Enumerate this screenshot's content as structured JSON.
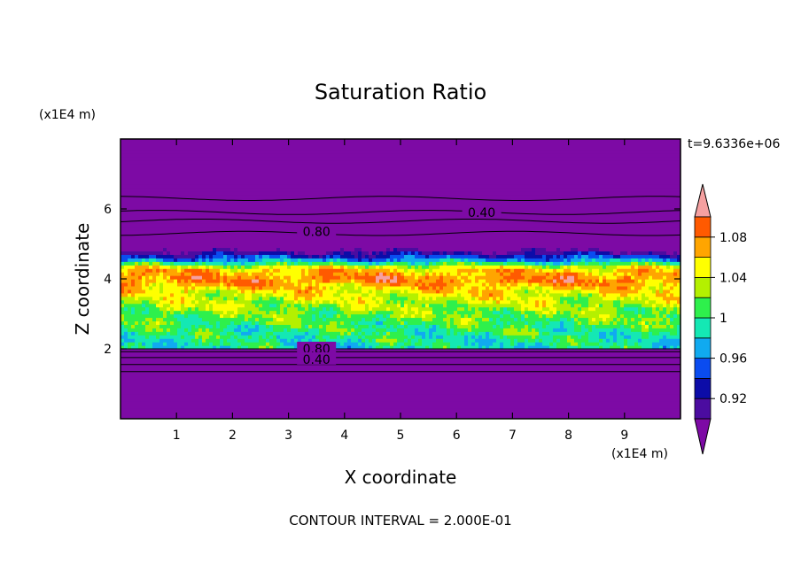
{
  "chart_data": {
    "type": "heatmap",
    "title": "Saturation Ratio",
    "xlabel": "X coordinate",
    "ylabel": "Z coordinate",
    "x_unit": "(x1E4 m)",
    "y_unit": "(x1E4 m)",
    "time_label": "t=9.6336e+06",
    "footer": "CONTOUR INTERVAL = 2.000E-01",
    "xlim": [
      0,
      10
    ],
    "ylim": [
      0,
      8
    ],
    "x_ticks": [
      "1",
      "2",
      "3",
      "4",
      "5",
      "6",
      "7",
      "8",
      "9"
    ],
    "y_ticks": [
      "2",
      "4",
      "6"
    ],
    "colorbar": {
      "levels": [
        0.9,
        0.92,
        0.94,
        0.96,
        0.98,
        1.0,
        1.02,
        1.04,
        1.06,
        1.08,
        1.1
      ],
      "labels": [
        "0.92",
        "0.96",
        "1",
        "1.04",
        "1.08"
      ],
      "colors": [
        "#4b0ca0",
        "#0c0ca8",
        "#0a4cf0",
        "#10aaf0",
        "#14e8b4",
        "#2ef04c",
        "#b4f000",
        "#ffff00",
        "#ffa500",
        "#ff5a00",
        "#ff1414",
        "#f5a0a0"
      ],
      "under_color": "#7d0aa5",
      "over_color": "#f5a0a0"
    },
    "contour_labels": [
      "0.40",
      "0.80",
      "0.80",
      "0.40"
    ],
    "profile": [
      {
        "z": 0.0,
        "value": 0.2
      },
      {
        "z": 1.95,
        "value": 0.4
      },
      {
        "z": 2.05,
        "value": 0.99
      },
      {
        "z": 2.5,
        "value": 1.0
      },
      {
        "z": 3.0,
        "value": 1.02
      },
      {
        "z": 3.5,
        "value": 1.04
      },
      {
        "z": 4.0,
        "value": 1.08
      },
      {
        "z": 4.3,
        "value": 1.06
      },
      {
        "z": 4.5,
        "value": 0.98
      },
      {
        "z": 4.7,
        "value": 0.93
      },
      {
        "z": 5.0,
        "value": 0.85
      },
      {
        "z": 6.0,
        "value": 0.5
      },
      {
        "z": 8.0,
        "value": 0.2
      }
    ]
  }
}
